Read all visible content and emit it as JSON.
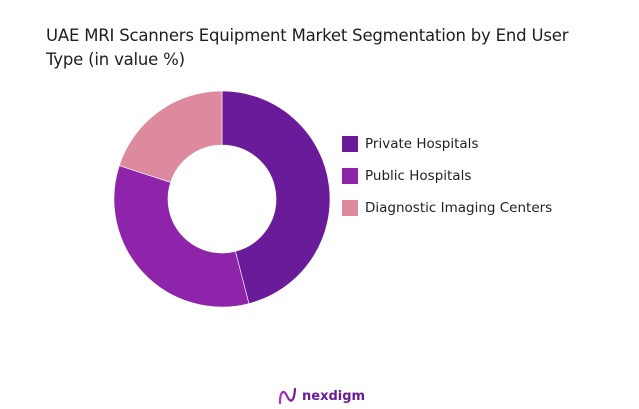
{
  "title": "UAE MRI Scanners Equipment Market Segmentation by End User Type (in value %)",
  "brand": {
    "name": "nexdigm",
    "color": "#7b2fb5"
  },
  "chart_data": {
    "type": "pie",
    "subtype": "donut",
    "title": "UAE MRI Scanners Equipment Market Segmentation by End User Type (in value %)",
    "categories": [
      "Private Hospitals",
      "Public Hospitals",
      "Diagnostic Imaging Centers"
    ],
    "values": [
      46,
      34,
      20
    ],
    "colors": [
      "#6a1b9a",
      "#8e24aa",
      "#de8a9e"
    ],
    "start_angle": 0,
    "direction": "clockwise",
    "legend_position": "right",
    "data_labels": false
  },
  "legend": {
    "items": [
      {
        "label": "Private Hospitals",
        "color": "#6a1b9a"
      },
      {
        "label": "Public Hospitals",
        "color": "#8e24aa"
      },
      {
        "label": "Diagnostic Imaging Centers",
        "color": "#de8a9e"
      }
    ]
  }
}
